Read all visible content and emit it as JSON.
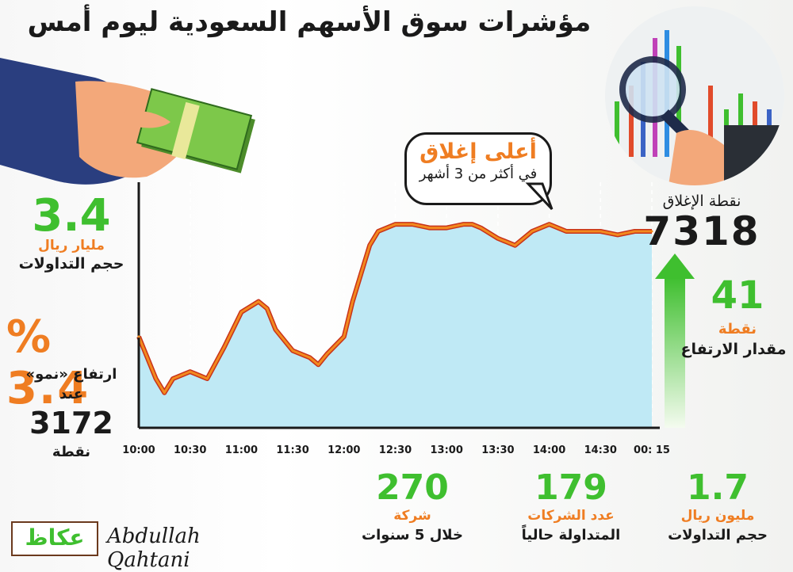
{
  "title": "مؤشرات سوق الأسهم السعودية ليوم أمس",
  "left_panel": {
    "volume_value": "3.4",
    "volume_unit": "مليار ريال",
    "volume_label": "حجم التداولات",
    "growth_value": "3.4",
    "growth_symbol": "%",
    "growth_label": "ارتفاع «نمو»",
    "growth_at": "عند",
    "growth_points": "3172",
    "growth_points_unit": "نقطة"
  },
  "callout": {
    "headline": "أعلى إغلاق",
    "subline": "في أكثر من 3 أشهر"
  },
  "right_panel": {
    "close_label": "نقطة الإغلاق",
    "close_value": "7318",
    "rise_value": "41",
    "rise_unit": "نقطة",
    "rise_label": "مقدار الارتفاع"
  },
  "bottom_stats": [
    {
      "value": "270",
      "unit": "شركة",
      "label": "خلال 5 سنوات"
    },
    {
      "value": "179",
      "unit": "عدد الشركات",
      "label": "المتداولة حالياً"
    },
    {
      "value": "1.7",
      "unit": "مليون ريال",
      "label": "حجم التداولات"
    }
  ],
  "branding": {
    "logo": "عكاظ",
    "signature": "Abdullah Qahtani"
  },
  "colors": {
    "accent_green": "#3fbf2f",
    "accent_orange": "#ef7d22",
    "line_orange": "#f28a1e",
    "line_red": "#c8321a",
    "area_fill": "#bfe9f5",
    "text_dark": "#1a1a1a"
  },
  "chart_data": {
    "type": "area",
    "title": "",
    "xlabel": "",
    "ylabel": "",
    "categories": [
      "10:00",
      "10:30",
      "11:00",
      "11:30",
      "12:00",
      "12:30",
      "13:00",
      "13:30",
      "14:00",
      "14:30",
      "00: 15"
    ],
    "x": [
      "10:00",
      "10:10",
      "10:15",
      "10:20",
      "10:30",
      "10:40",
      "10:50",
      "11:00",
      "11:10",
      "11:15",
      "11:20",
      "11:30",
      "11:40",
      "11:45",
      "11:50",
      "12:00",
      "12:05",
      "12:10",
      "12:15",
      "12:20",
      "12:30",
      "12:40",
      "12:50",
      "13:00",
      "13:10",
      "13:15",
      "13:20",
      "13:30",
      "13:40",
      "13:50",
      "14:00",
      "14:10",
      "14:20",
      "14:30",
      "14:40",
      "14:50",
      "15:00"
    ],
    "series": [
      {
        "values": [
          7288,
          7276,
          7272,
          7276,
          7278,
          7276,
          7285,
          7295,
          7298,
          7296,
          7290,
          7284,
          7282,
          7280,
          7283,
          7288,
          7298,
          7306,
          7314,
          7318,
          7320,
          7320,
          7319,
          7319,
          7320,
          7320,
          7319,
          7316,
          7314,
          7318,
          7320,
          7318,
          7318,
          7318,
          7317,
          7318,
          7318
        ]
      }
    ],
    "ylim": [
      7262,
      7332
    ],
    "grid": "vertical dashed",
    "annotation": "أعلى إغلاق في أكثر من 3 أشهر",
    "close": 7318
  }
}
